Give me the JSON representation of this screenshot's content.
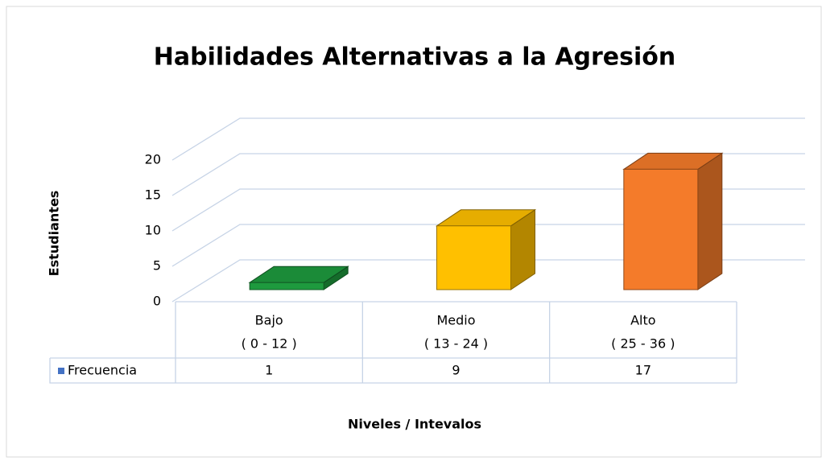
{
  "chart_data": {
    "type": "bar3d",
    "title": "Habilidades  Alternativas a la  Agresión",
    "y_label": "Estudiantes",
    "x_label": "Niveles / Intevalos",
    "categories": [
      "Bajo",
      "Medio",
      "Alto"
    ],
    "category_ranges": [
      "( 0 - 12 )",
      "( 13 - 24 )",
      "( 25 - 36 )"
    ],
    "series": [
      {
        "name": "Frecuencia",
        "color": "#4472c4",
        "values": [
          1,
          9,
          17
        ],
        "bar_colors": [
          "#1e9a3e",
          "#ffc000",
          "#f47b2a"
        ]
      }
    ],
    "ylim": [
      0,
      20
    ],
    "yticks": [
      0,
      5,
      10,
      15,
      20
    ],
    "grid": true,
    "data_table": true
  }
}
